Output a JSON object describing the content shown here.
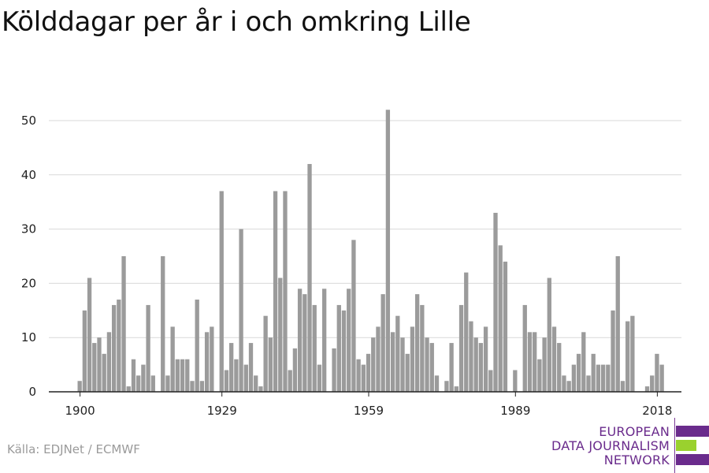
{
  "title": "Kölddagar per år i och omkring Lille",
  "source": "Källa: EDJNet / ECMWF",
  "logo": {
    "lines": [
      "EUROPEAN",
      "DATA JOURNALISM",
      "NETWORK"
    ],
    "colors": {
      "primary": "#6a2b8c",
      "accent": "#9ad12e"
    }
  },
  "colors": {
    "bar": "#9b9b9b",
    "grid": "#d9d9d9",
    "axis": "#222222"
  },
  "chart_data": {
    "type": "bar",
    "title": "Kölddagar per år i och omkring Lille",
    "xlabel": "",
    "ylabel": "",
    "ylim": [
      0,
      50
    ],
    "yticks": [
      0,
      10,
      20,
      30,
      40,
      50
    ],
    "xticks": [
      1900,
      1929,
      1959,
      1989,
      2018
    ],
    "grid": true,
    "x": [
      1900,
      1901,
      1902,
      1903,
      1904,
      1905,
      1906,
      1907,
      1908,
      1909,
      1910,
      1911,
      1912,
      1913,
      1914,
      1915,
      1916,
      1917,
      1918,
      1919,
      1920,
      1921,
      1922,
      1923,
      1924,
      1925,
      1926,
      1927,
      1928,
      1929,
      1930,
      1931,
      1932,
      1933,
      1934,
      1935,
      1936,
      1937,
      1938,
      1939,
      1940,
      1941,
      1942,
      1943,
      1944,
      1945,
      1946,
      1947,
      1948,
      1949,
      1950,
      1951,
      1952,
      1953,
      1954,
      1955,
      1956,
      1957,
      1958,
      1959,
      1960,
      1961,
      1962,
      1963,
      1964,
      1965,
      1966,
      1967,
      1968,
      1969,
      1970,
      1971,
      1972,
      1973,
      1974,
      1975,
      1976,
      1977,
      1978,
      1979,
      1980,
      1981,
      1982,
      1983,
      1984,
      1985,
      1986,
      1987,
      1988,
      1989,
      1990,
      1991,
      1992,
      1993,
      1994,
      1995,
      1996,
      1997,
      1998,
      1999,
      2000,
      2001,
      2002,
      2003,
      2004,
      2005,
      2006,
      2007,
      2008,
      2009,
      2010,
      2011,
      2012,
      2013,
      2014,
      2015,
      2016,
      2017,
      2018,
      2019,
      2020
    ],
    "values": [
      2,
      15,
      21,
      9,
      10,
      7,
      11,
      16,
      17,
      25,
      1,
      6,
      3,
      5,
      16,
      3,
      0,
      25,
      3,
      12,
      6,
      6,
      6,
      2,
      17,
      2,
      11,
      12,
      0,
      37,
      4,
      9,
      6,
      30,
      5,
      9,
      3,
      1,
      14,
      10,
      37,
      21,
      37,
      4,
      8,
      19,
      18,
      42,
      16,
      5,
      19,
      0,
      8,
      16,
      15,
      19,
      28,
      6,
      5,
      7,
      10,
      12,
      18,
      52,
      11,
      14,
      10,
      7,
      12,
      18,
      16,
      10,
      9,
      3,
      0,
      2,
      9,
      1,
      16,
      22,
      13,
      10,
      9,
      12,
      4,
      33,
      27,
      24,
      0,
      4,
      0,
      16,
      11,
      11,
      6,
      10,
      21,
      12,
      9,
      3,
      2,
      5,
      7,
      11,
      3,
      7,
      5,
      5,
      5,
      15,
      25,
      2,
      13,
      14,
      0,
      0,
      1,
      3,
      7,
      5,
      0
    ]
  }
}
